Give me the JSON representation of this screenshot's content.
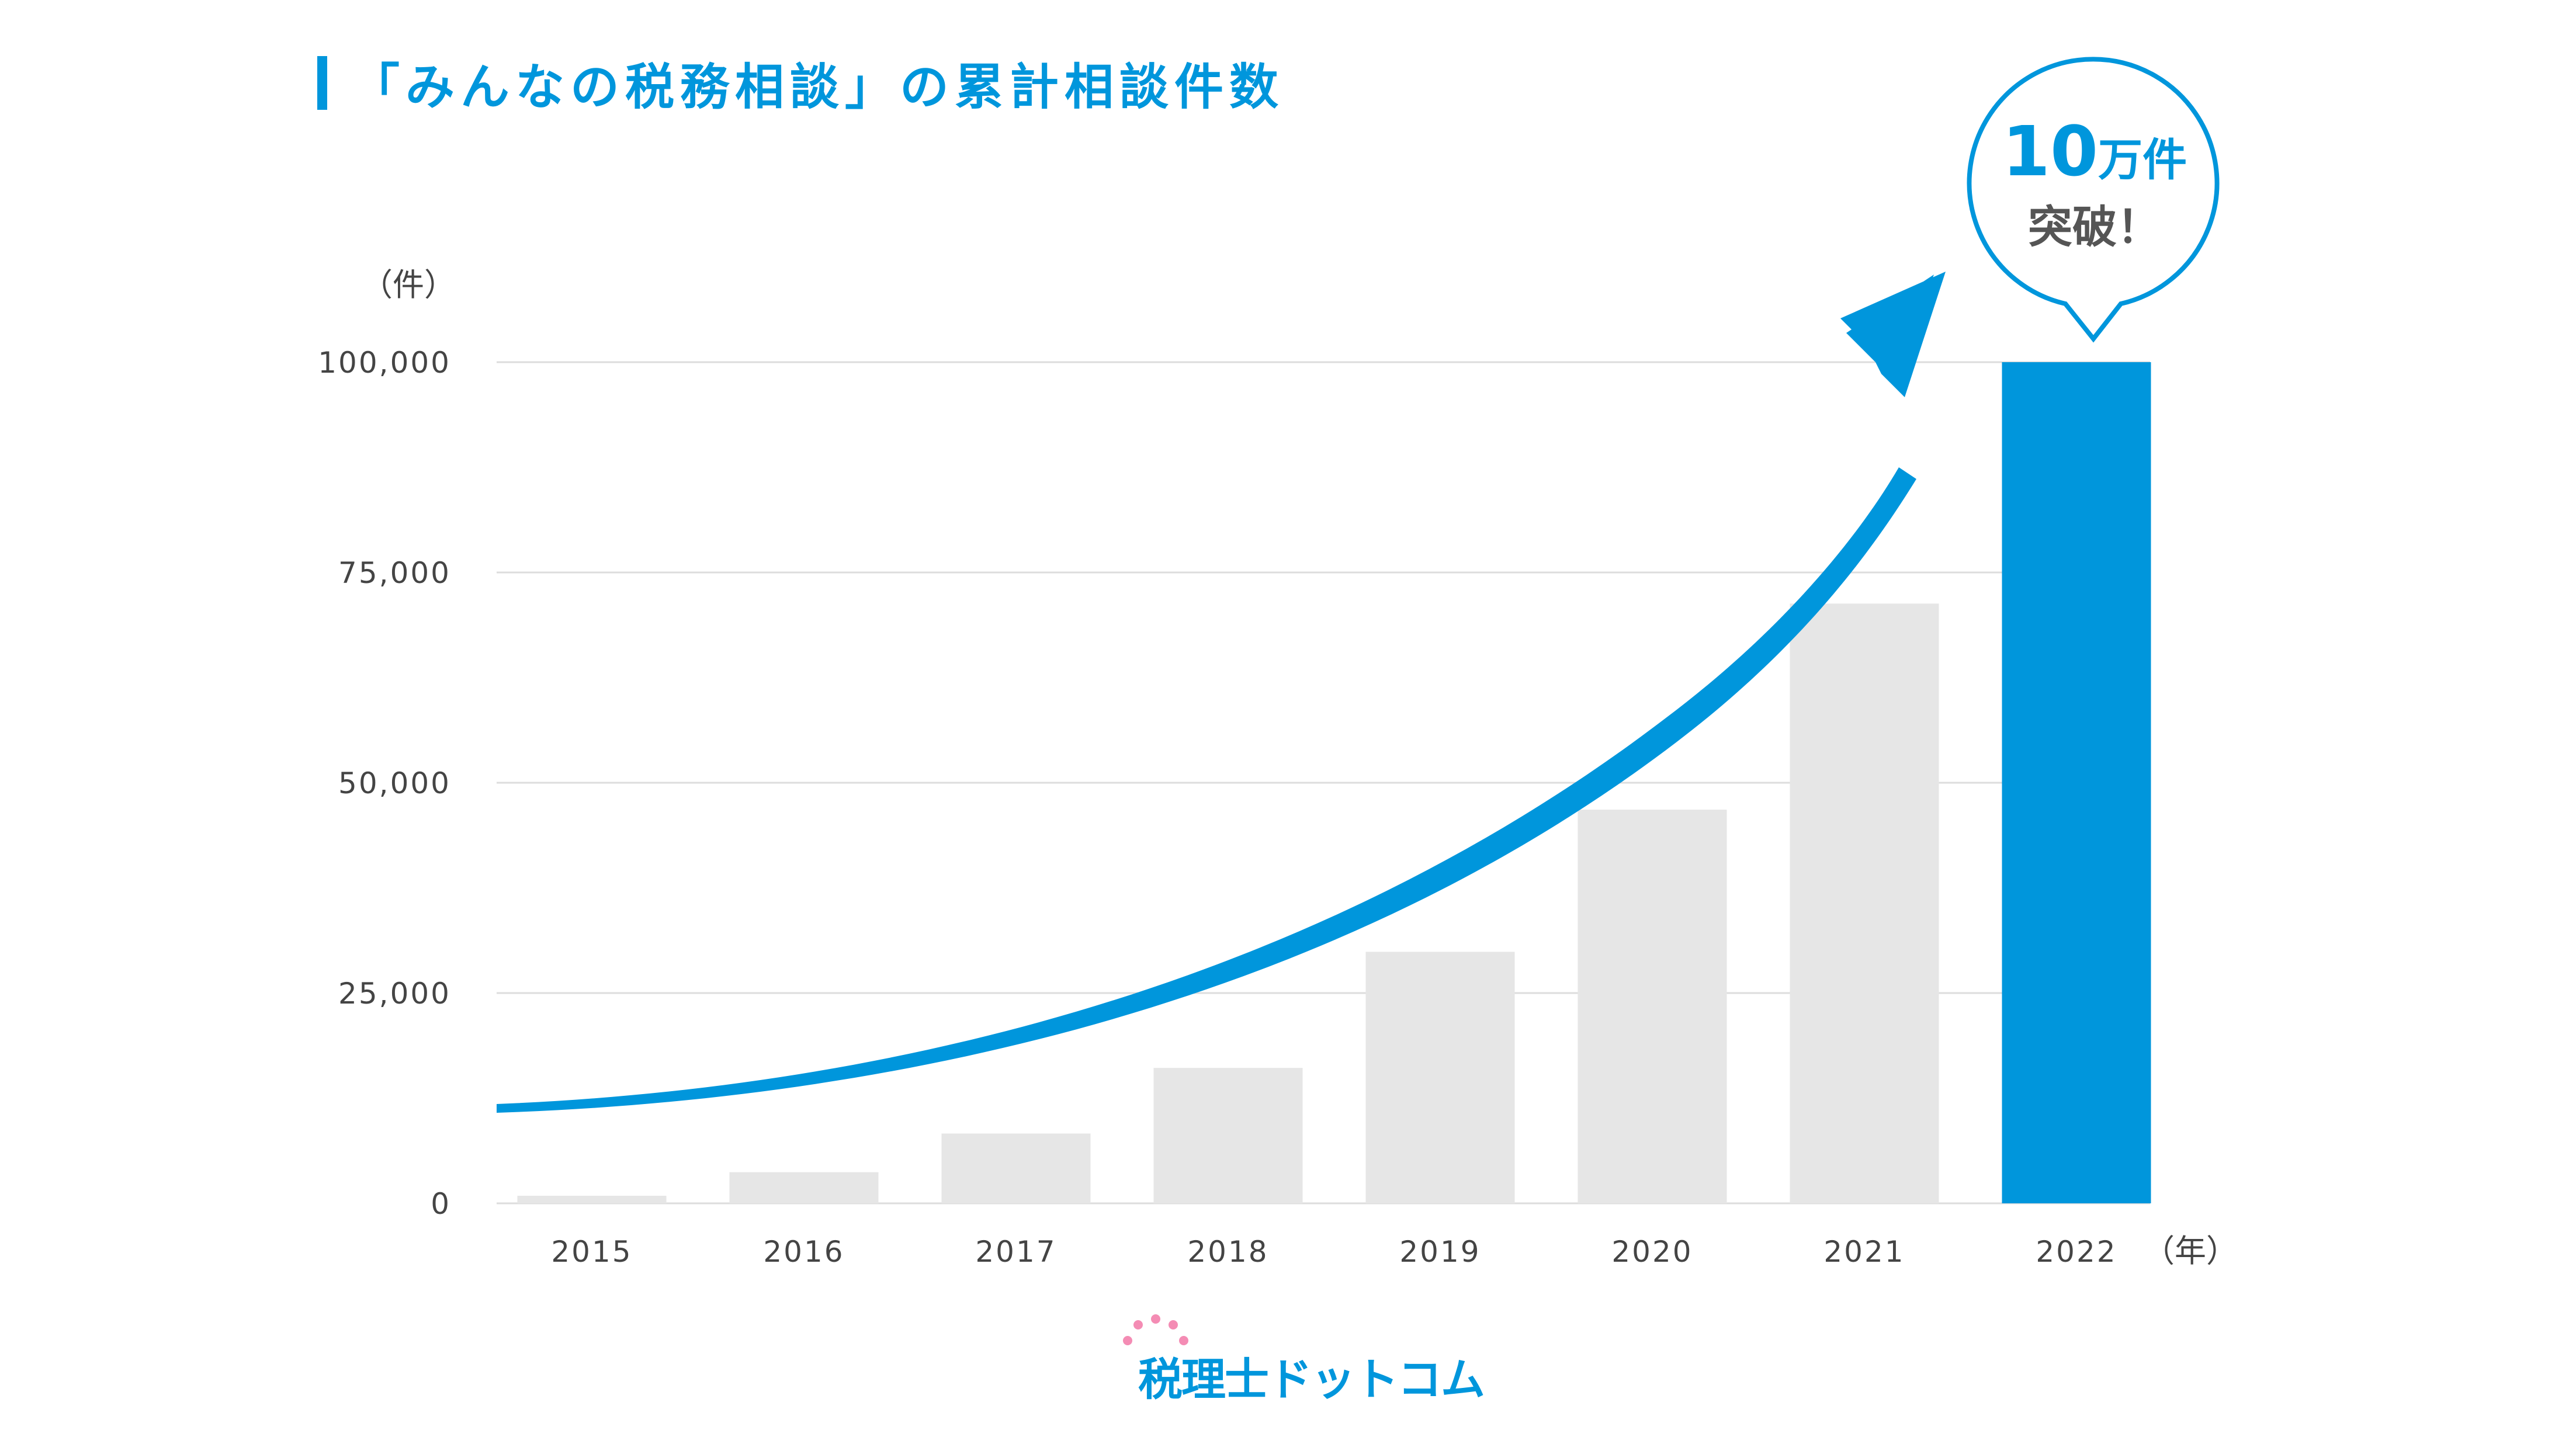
{
  "title": "「みんなの税務相談」の累計相談件数",
  "logo_text": "税理士ドットコム",
  "badge": {
    "line1_number": "10",
    "line1_suffix": "万件",
    "line2": "突破！"
  },
  "colors": {
    "accent": "#0096dc",
    "bar_default": "#e6e6e6",
    "grid": "#dddddd",
    "text": "#444444"
  },
  "chart_data": {
    "type": "bar",
    "title": "「みんなの税務相談」の累計相談件数",
    "y_unit_label": "（件）",
    "x_unit_label": "（年）",
    "categories": [
      "2015",
      "2016",
      "2017",
      "2018",
      "2019",
      "2020",
      "2021",
      "2022"
    ],
    "values": [
      900,
      3700,
      8300,
      16100,
      29900,
      46800,
      71300,
      100000
    ],
    "highlight_index": 7,
    "ylim": [
      0,
      100000
    ],
    "yticks": [
      0,
      25000,
      50000,
      75000,
      100000
    ],
    "ytick_labels": [
      "0",
      "25,000",
      "50,000",
      "75,000",
      "100,000"
    ],
    "grid": true,
    "legend": "none",
    "annotation": "growth arrow from 2015 to 2022"
  }
}
